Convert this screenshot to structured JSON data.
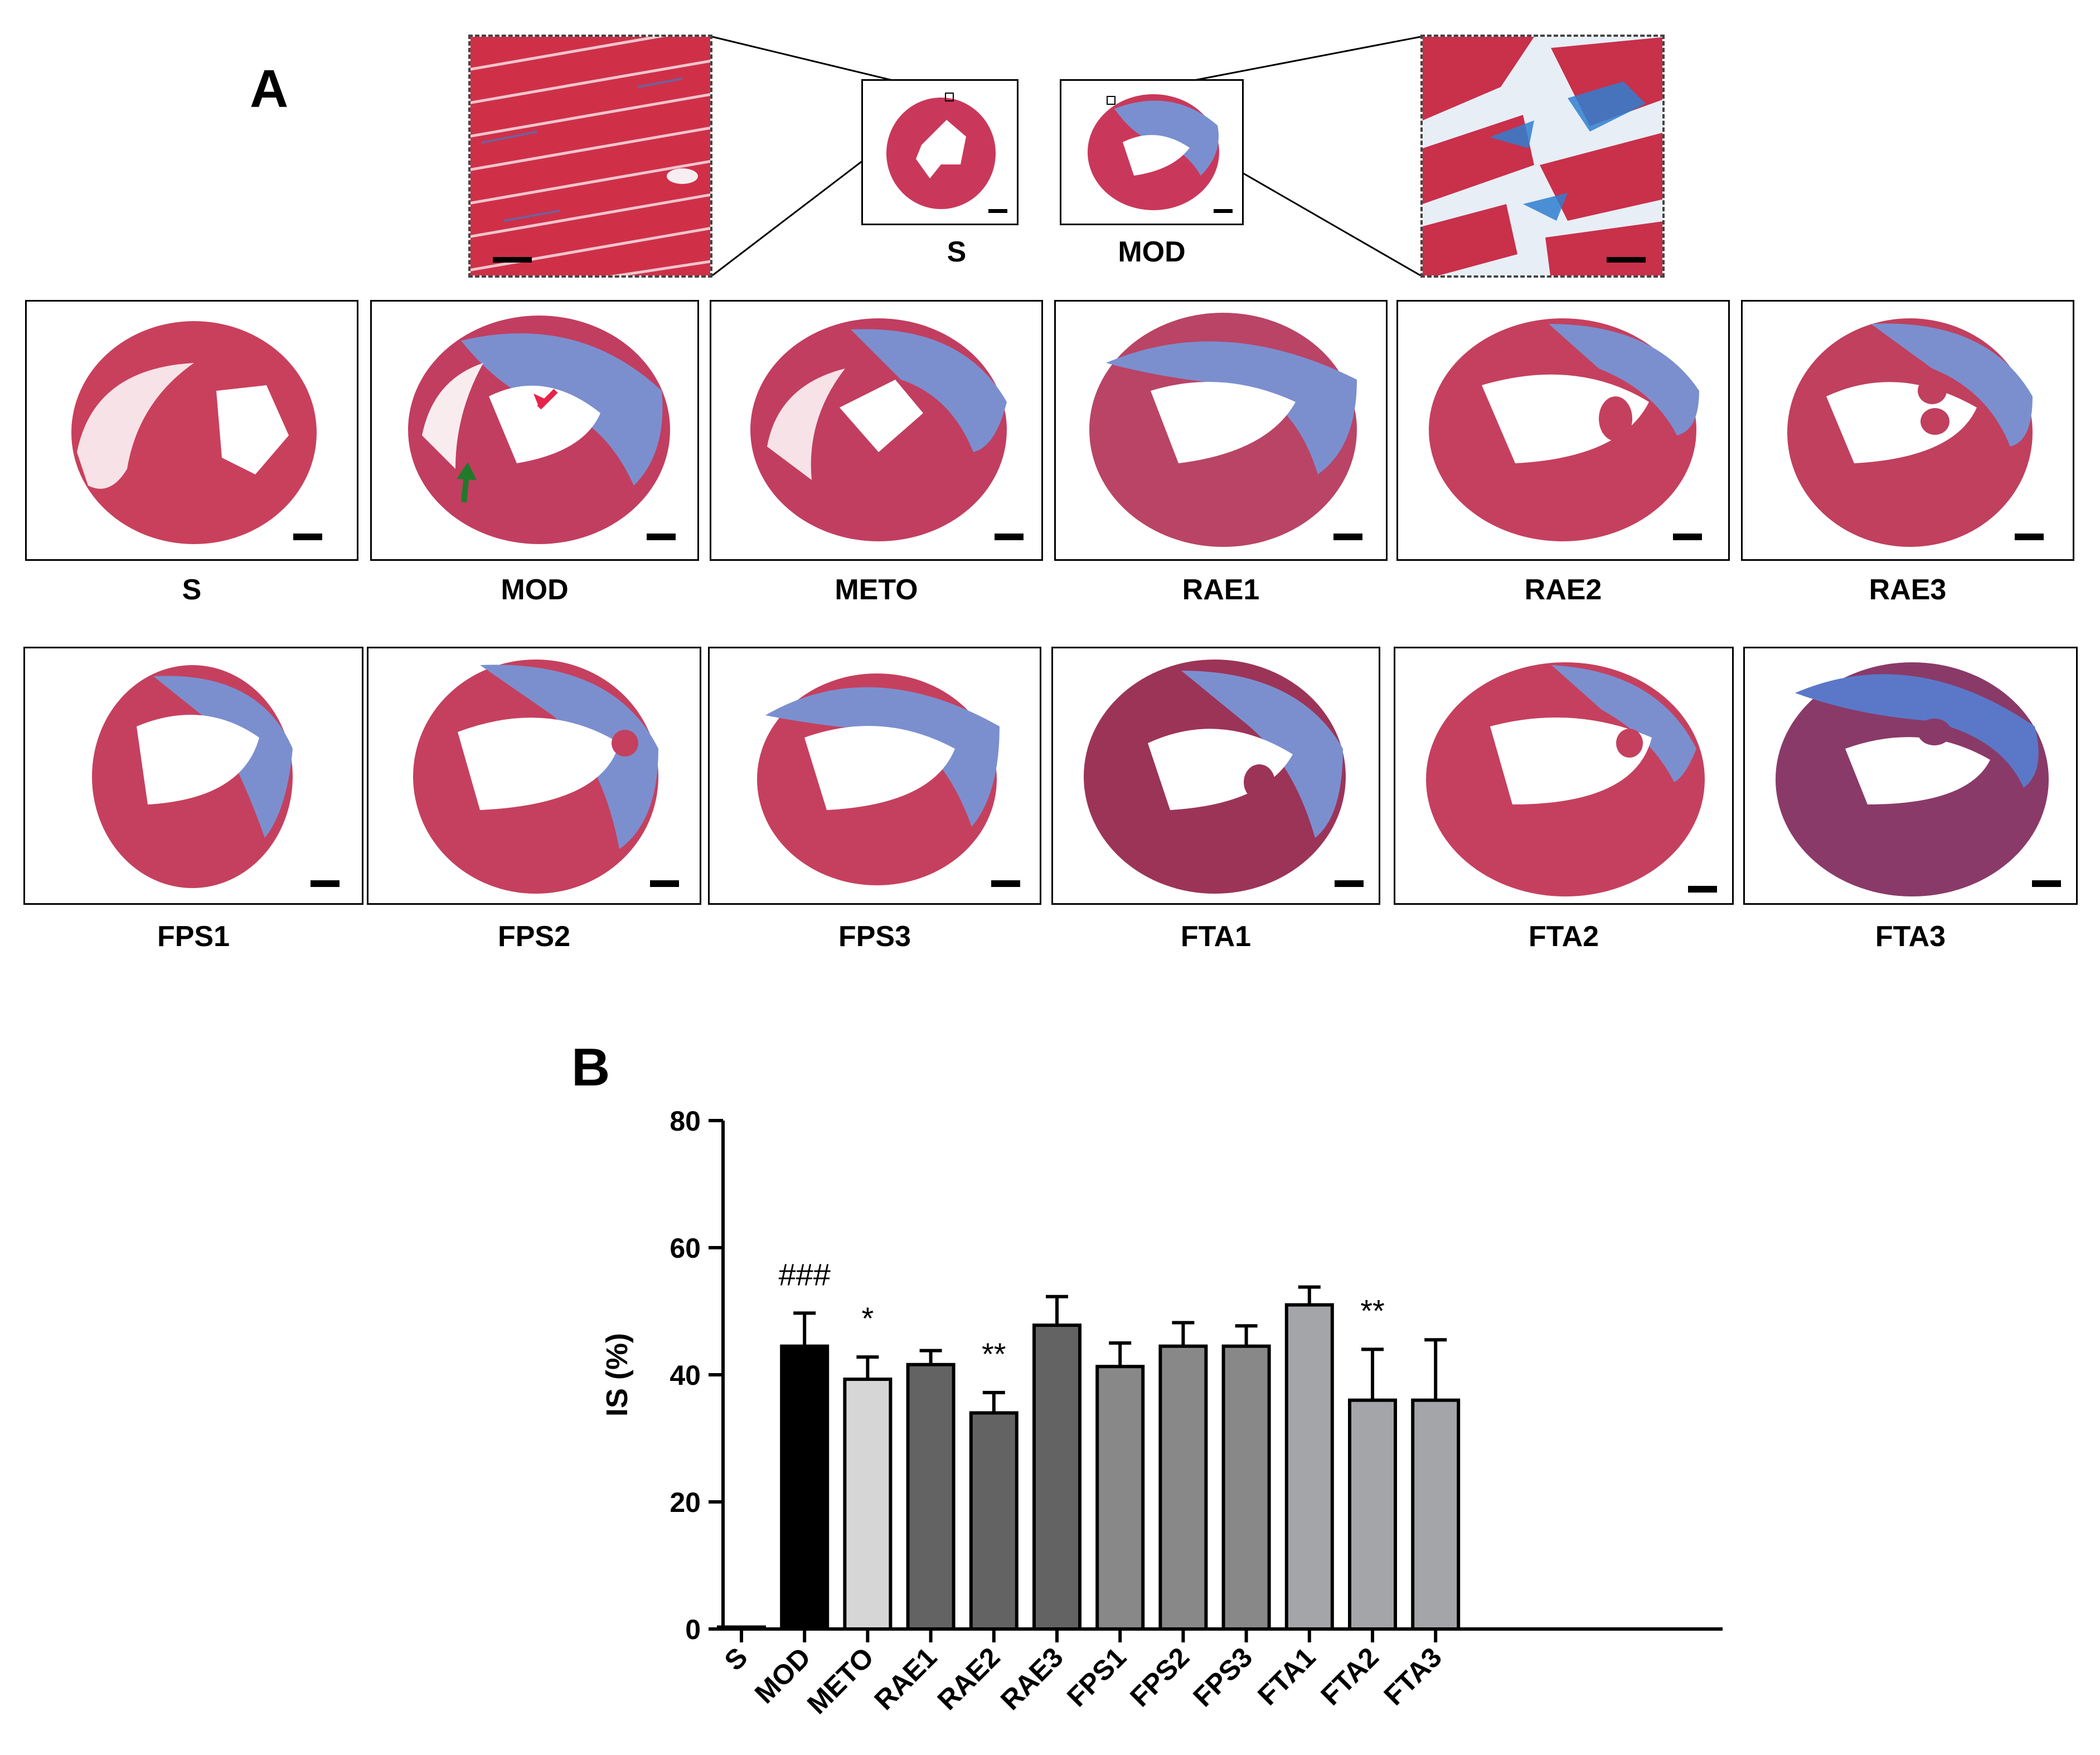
{
  "panel_a": {
    "letter": "A",
    "inset_labels": [
      "S",
      "MOD"
    ],
    "row1_labels": [
      "S",
      "MOD",
      "METO",
      "RAE1",
      "RAE2",
      "RAE3"
    ],
    "row2_labels": [
      "FPS1",
      "FPS2",
      "FPS3",
      "FTA1",
      "FTA2",
      "FTA3"
    ]
  },
  "panel_b": {
    "letter": "B"
  },
  "colors": {
    "myocardium": "#c8324a",
    "fibrosis": "#6a84c8",
    "collagen_blue": "#2f7fd0"
  },
  "chart_data": {
    "type": "bar",
    "title": "",
    "xlabel": "",
    "ylabel": "IS (%)",
    "ylim": [
      0,
      80
    ],
    "yticks": [
      0,
      20,
      40,
      60,
      80
    ],
    "categories": [
      "S",
      "MOD",
      "METO",
      "RAE1",
      "RAE2",
      "RAE3",
      "FPS1",
      "FPS2",
      "FPS3",
      "FTA1",
      "FTA2",
      "FTA3"
    ],
    "values": [
      0.3,
      44.5,
      39.3,
      41.6,
      34.0,
      47.8,
      41.3,
      44.5,
      44.5,
      51.0,
      36.0,
      36.0
    ],
    "errors": [
      0,
      5.2,
      3.5,
      2.2,
      3.2,
      4.5,
      3.7,
      3.7,
      3.2,
      2.8,
      8.0,
      9.5
    ],
    "bar_colors": [
      "#000000",
      "#000000",
      "#d6d6d6",
      "#636363",
      "#636363",
      "#636363",
      "#888888",
      "#888888",
      "#888888",
      "#a4a5a8",
      "#a4a5a8",
      "#a4a5a8"
    ],
    "annotations": [
      {
        "category": "MOD",
        "text": "###"
      },
      {
        "category": "METO",
        "text": "*"
      },
      {
        "category": "RAE2",
        "text": "**"
      },
      {
        "category": "FTA2",
        "text": "**"
      }
    ]
  }
}
